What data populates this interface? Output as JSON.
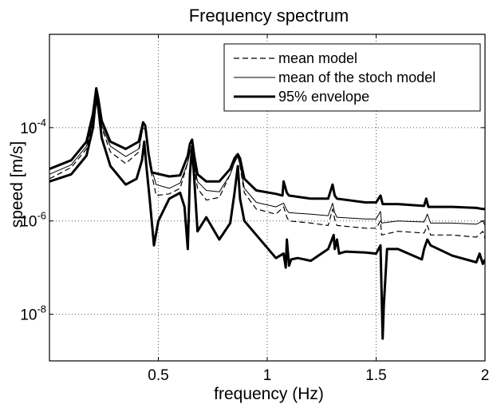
{
  "chart_data": {
    "type": "line",
    "title": "Frequency spectrum",
    "xlabel": "frequency (Hz)",
    "ylabel": "speed [m/s]",
    "xlim": [
      0,
      2
    ],
    "ylim": [
      1e-09,
      0.01
    ],
    "yscale": "log",
    "grid": true,
    "legend_position": "top-right",
    "x_ticks": [
      {
        "value": 0.5,
        "label": "0.5"
      },
      {
        "value": 1,
        "label": "1"
      },
      {
        "value": 1.5,
        "label": "1.5"
      },
      {
        "value": 2,
        "label": "2"
      }
    ],
    "y_ticks": [
      {
        "value": 1e-08,
        "base": "10",
        "exponent": "-8"
      },
      {
        "value": 1e-06,
        "base": "10",
        "exponent": "-6"
      },
      {
        "value": 0.0001,
        "base": "10",
        "exponent": "-4"
      }
    ],
    "series": [
      {
        "name": "mean model",
        "style": "dashed",
        "color": "#000000",
        "x": [
          0,
          0.1,
          0.17,
          0.2,
          0.215,
          0.225,
          0.24,
          0.28,
          0.35,
          0.41,
          0.43,
          0.44,
          0.46,
          0.49,
          0.55,
          0.6,
          0.635,
          0.645,
          0.655,
          0.665,
          0.68,
          0.72,
          0.78,
          0.83,
          0.85,
          0.865,
          0.875,
          0.895,
          0.95,
          1.04,
          1.075,
          1.09,
          1.1,
          1.2,
          1.28,
          1.3,
          1.31,
          1.32,
          1.45,
          1.5,
          1.52,
          1.525,
          1.6,
          1.72,
          1.735,
          1.75,
          1.85,
          1.96,
          1.99,
          2.0
        ],
        "y": [
          8e-06,
          1.4e-05,
          3.5e-05,
          0.00012,
          0.0005,
          0.0003,
          0.0001,
          3e-05,
          1.7e-05,
          3e-05,
          0.00011,
          0.0001,
          1.6e-05,
          3.5e-06,
          3.8e-06,
          5e-06,
          1.8e-05,
          3e-05,
          4e-05,
          1.5e-05,
          5e-06,
          2.8e-06,
          3.2e-06,
          1e-05,
          1.8e-05,
          2.5e-05,
          1.5e-05,
          4e-06,
          1.8e-06,
          1.4e-06,
          2e-06,
          1.2e-06,
          1e-06,
          9e-07,
          8e-07,
          1.8e-06,
          1.1e-06,
          8e-07,
          7e-07,
          7e-07,
          1e-06,
          5e-07,
          6e-07,
          5.5e-07,
          8e-07,
          5e-07,
          5e-07,
          4.5e-07,
          6e-07,
          4.2e-07
        ]
      },
      {
        "name": "mean of the stoch model",
        "style": "solid-thin",
        "color": "#000000",
        "x": [
          0,
          0.1,
          0.17,
          0.2,
          0.215,
          0.225,
          0.24,
          0.28,
          0.35,
          0.41,
          0.43,
          0.44,
          0.46,
          0.49,
          0.55,
          0.6,
          0.635,
          0.645,
          0.655,
          0.665,
          0.68,
          0.72,
          0.78,
          0.83,
          0.85,
          0.865,
          0.875,
          0.895,
          0.95,
          1.04,
          1.075,
          1.09,
          1.1,
          1.2,
          1.28,
          1.3,
          1.31,
          1.32,
          1.45,
          1.5,
          1.52,
          1.525,
          1.6,
          1.72,
          1.735,
          1.75,
          1.85,
          1.96,
          1.99,
          2.0
        ],
        "y": [
          1e-05,
          1.6e-05,
          4e-05,
          0.00014,
          0.0005,
          0.00032,
          0.00011,
          4e-05,
          2.4e-05,
          3.5e-05,
          0.0001,
          9e-05,
          1.8e-05,
          6e-06,
          5e-06,
          6.5e-06,
          1.8e-05,
          3e-05,
          3.8e-05,
          1.6e-05,
          7e-06,
          4.5e-06,
          4.2e-06,
          1e-05,
          1.8e-05,
          2.4e-05,
          1.6e-05,
          5e-06,
          2.5e-06,
          2e-06,
          2.4e-06,
          1.7e-06,
          1.5e-06,
          1.4e-06,
          1.3e-06,
          2.4e-06,
          1.5e-06,
          1.2e-06,
          1.1e-06,
          1.1e-06,
          1.6e-06,
          9e-07,
          1e-06,
          9.5e-07,
          1.4e-06,
          9e-07,
          9e-07,
          8.5e-07,
          1e-06,
          8e-07
        ]
      },
      {
        "name": "95% envelope",
        "style": "solid-thick",
        "color": "#000000",
        "x": [
          0,
          0.1,
          0.17,
          0.2,
          0.215,
          0.225,
          0.24,
          0.28,
          0.35,
          0.41,
          0.43,
          0.44,
          0.455,
          0.47,
          0.55,
          0.6,
          0.635,
          0.645,
          0.655,
          0.665,
          0.68,
          0.72,
          0.78,
          0.83,
          0.85,
          0.865,
          0.875,
          0.895,
          0.95,
          1.04,
          1.07,
          1.075,
          1.09,
          1.1,
          1.2,
          1.28,
          1.3,
          1.31,
          1.32,
          1.45,
          1.5,
          1.52,
          1.53,
          1.6,
          1.72,
          1.73,
          1.74,
          1.85,
          1.96,
          1.99,
          2.0
        ],
        "y": [
          1.3e-05,
          2e-05,
          5e-05,
          0.0002,
          0.0007,
          0.0004,
          0.00014,
          5e-05,
          3.5e-05,
          5e-05,
          0.00013,
          0.00011,
          2.8e-05,
          1.1e-05,
          9e-06,
          9.5e-06,
          2.5e-05,
          4.5e-05,
          5.5e-05,
          2.5e-05,
          1e-05,
          7e-06,
          7e-06,
          1.3e-05,
          2.2e-05,
          2.7e-05,
          2.2e-05,
          8e-06,
          4.5e-06,
          3.8e-06,
          3.5e-06,
          7e-06,
          4e-06,
          3.5e-06,
          3e-06,
          3e-06,
          6e-06,
          3.5e-06,
          3e-06,
          2.5e-06,
          2.5e-06,
          3.5e-06,
          2.3e-06,
          2.3e-06,
          2.1e-06,
          3e-06,
          2e-06,
          2e-06,
          1.9e-06,
          1.8e-06,
          1.8e-06
        ]
      },
      {
        "name": "",
        "style": "solid-thick",
        "color": "#000000",
        "x": [
          0,
          0.1,
          0.17,
          0.2,
          0.215,
          0.225,
          0.24,
          0.28,
          0.35,
          0.4,
          0.425,
          0.435,
          0.445,
          0.46,
          0.48,
          0.5,
          0.55,
          0.6,
          0.62,
          0.635,
          0.645,
          0.655,
          0.665,
          0.68,
          0.72,
          0.78,
          0.83,
          0.85,
          0.865,
          0.875,
          0.895,
          0.95,
          1.04,
          1.075,
          1.085,
          1.09,
          1.1,
          1.11,
          1.14,
          1.2,
          1.28,
          1.305,
          1.31,
          1.32,
          1.33,
          1.36,
          1.45,
          1.5,
          1.52,
          1.53,
          1.535,
          1.55,
          1.6,
          1.71,
          1.72,
          1.735,
          1.75,
          1.85,
          1.96,
          1.975,
          1.99,
          2.0
        ],
        "y": [
          7e-06,
          1e-05,
          2.5e-05,
          0.0001,
          0.0005,
          0.00025,
          6e-05,
          1.5e-05,
          6e-06,
          8e-06,
          2e-05,
          5e-05,
          1.5e-05,
          3e-06,
          3e-07,
          1e-06,
          3e-06,
          4e-06,
          2e-06,
          2.5e-07,
          1e-05,
          4e-05,
          8e-06,
          6e-07,
          1.2e-06,
          4e-07,
          9e-07,
          4e-06,
          1.5e-05,
          3e-06,
          1e-06,
          5e-07,
          1.6e-07,
          2e-07,
          1e-07,
          4e-07,
          1.1e-07,
          1.5e-07,
          1.6e-07,
          1.4e-07,
          2.5e-07,
          5e-07,
          2.5e-07,
          4e-07,
          2e-07,
          2.2e-07,
          2.1e-07,
          2e-07,
          3e-07,
          3e-09,
          1.5e-08,
          2.5e-07,
          2.5e-07,
          1.5e-07,
          2.5e-07,
          4e-07,
          3e-07,
          1.8e-07,
          1.3e-07,
          2e-07,
          1.2e-07,
          1.5e-07
        ]
      }
    ]
  }
}
